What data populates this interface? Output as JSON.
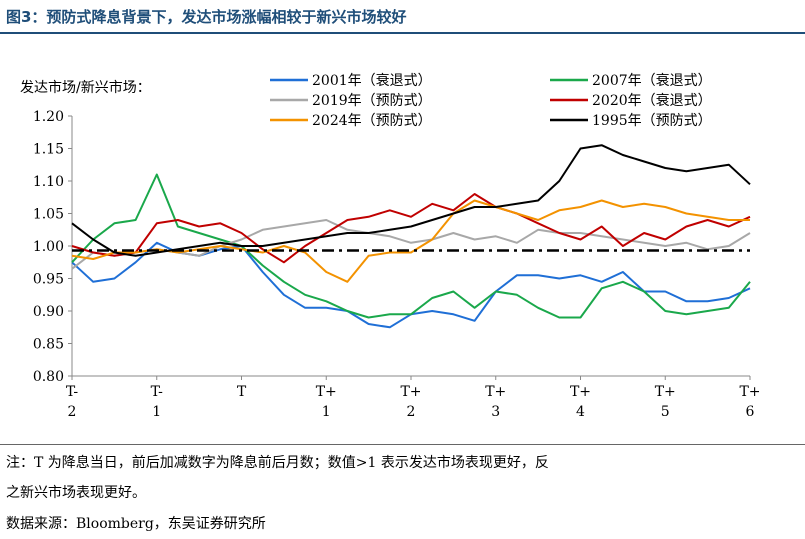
{
  "header": {
    "title": "图3：预防式降息背景下，发达市场涨幅相较于新兴市场较好"
  },
  "footer": {
    "note_line1": "注：T 为降息当日，前后加减数字为降息前后月数；数值>1 表示发达市场表现更好，反",
    "note_line2": "之新兴市场表现更好。",
    "source": "数据来源：Bloomberg，东吴证券研究所"
  },
  "chart_data": {
    "type": "line",
    "ylabel": "发达市场/新兴市场：",
    "ylim": [
      0.8,
      1.2
    ],
    "yticks": [
      "0.80",
      "0.85",
      "0.90",
      "0.95",
      "1.00",
      "1.05",
      "1.10",
      "1.15",
      "1.20"
    ],
    "xlim": [
      -2,
      6
    ],
    "xticks": [
      {
        "x": -2,
        "l1": "T-",
        "l2": "2"
      },
      {
        "x": -1,
        "l1": "T-",
        "l2": "1"
      },
      {
        "x": 0,
        "l1": "T",
        "l2": ""
      },
      {
        "x": 1,
        "l1": "T+",
        "l2": "1"
      },
      {
        "x": 2,
        "l1": "T+",
        "l2": "2"
      },
      {
        "x": 3,
        "l1": "T+",
        "l2": "3"
      },
      {
        "x": 4,
        "l1": "T+",
        "l2": "4"
      },
      {
        "x": 5,
        "l1": "T+",
        "l2": "5"
      },
      {
        "x": 6,
        "l1": "T+",
        "l2": "6"
      }
    ],
    "reference_line": {
      "y": 0.993,
      "style": "dash-dot",
      "color": "#000000"
    },
    "legend_position": "top",
    "series": [
      {
        "name": "2001年（衰退式）",
        "color": "#1f6fd6",
        "x": [
          -2,
          -1.75,
          -1.5,
          -1.25,
          -1.0,
          -0.75,
          -0.5,
          -0.25,
          0,
          0.25,
          0.5,
          0.75,
          1.0,
          1.25,
          1.5,
          1.75,
          2.0,
          2.25,
          2.5,
          2.75,
          3.0,
          3.25,
          3.5,
          3.75,
          4.0,
          4.25,
          4.5,
          4.75,
          5.0,
          5.25,
          5.5,
          5.75,
          6.0
        ],
        "y": [
          0.975,
          0.945,
          0.95,
          0.975,
          1.005,
          0.99,
          0.985,
          0.995,
          1.0,
          0.96,
          0.925,
          0.905,
          0.905,
          0.9,
          0.88,
          0.875,
          0.895,
          0.9,
          0.895,
          0.885,
          0.93,
          0.955,
          0.955,
          0.95,
          0.955,
          0.945,
          0.96,
          0.93,
          0.93,
          0.915,
          0.915,
          0.92,
          0.935
        ]
      },
      {
        "name": "2007年（衰退式）",
        "color": "#1aa84b",
        "x": [
          -2,
          -1.75,
          -1.5,
          -1.25,
          -1.0,
          -0.75,
          -0.5,
          -0.25,
          0,
          0.25,
          0.5,
          0.75,
          1.0,
          1.25,
          1.5,
          1.75,
          2.0,
          2.25,
          2.5,
          2.75,
          3.0,
          3.25,
          3.5,
          3.75,
          4.0,
          4.25,
          4.5,
          4.75,
          5.0,
          5.25,
          5.5,
          5.75,
          6.0
        ],
        "y": [
          0.975,
          1.01,
          1.035,
          1.04,
          1.11,
          1.03,
          1.02,
          1.01,
          1.0,
          0.97,
          0.945,
          0.925,
          0.915,
          0.9,
          0.89,
          0.895,
          0.895,
          0.92,
          0.93,
          0.905,
          0.93,
          0.925,
          0.905,
          0.89,
          0.89,
          0.935,
          0.945,
          0.93,
          0.9,
          0.895,
          0.9,
          0.905,
          0.945
        ]
      },
      {
        "name": "2019年（预防式）",
        "color": "#a8a8a8",
        "x": [
          -2,
          -1.75,
          -1.5,
          -1.25,
          -1.0,
          -0.75,
          -0.5,
          -0.25,
          0,
          0.25,
          0.5,
          0.75,
          1.0,
          1.25,
          1.5,
          1.75,
          2.0,
          2.25,
          2.5,
          2.75,
          3.0,
          3.25,
          3.5,
          3.75,
          4.0,
          4.25,
          4.5,
          4.75,
          5.0,
          5.25,
          5.5,
          5.75,
          6.0
        ],
        "y": [
          0.965,
          0.99,
          0.985,
          0.99,
          0.995,
          0.99,
          0.985,
          1.0,
          1.01,
          1.025,
          1.03,
          1.035,
          1.04,
          1.025,
          1.02,
          1.015,
          1.005,
          1.01,
          1.02,
          1.01,
          1.015,
          1.005,
          1.025,
          1.02,
          1.02,
          1.015,
          1.01,
          1.005,
          1.0,
          1.005,
          0.995,
          1.0,
          1.02
        ]
      },
      {
        "name": "2020年（衰退式）",
        "color": "#c00000",
        "x": [
          -2,
          -1.75,
          -1.5,
          -1.25,
          -1.0,
          -0.75,
          -0.5,
          -0.25,
          0,
          0.25,
          0.5,
          0.75,
          1.0,
          1.25,
          1.5,
          1.75,
          2.0,
          2.25,
          2.5,
          2.75,
          3.0,
          3.25,
          3.5,
          3.75,
          4.0,
          4.25,
          4.5,
          4.75,
          5.0,
          5.25,
          5.5,
          5.75,
          6.0
        ],
        "y": [
          1.0,
          0.99,
          0.985,
          0.99,
          1.035,
          1.04,
          1.03,
          1.035,
          1.02,
          0.995,
          0.975,
          1.0,
          1.02,
          1.04,
          1.045,
          1.055,
          1.045,
          1.065,
          1.055,
          1.08,
          1.06,
          1.05,
          1.035,
          1.02,
          1.01,
          1.03,
          1.0,
          1.02,
          1.01,
          1.03,
          1.04,
          1.03,
          1.045
        ]
      },
      {
        "name": "2024年（预防式）",
        "color": "#f39200",
        "x": [
          -2,
          -1.75,
          -1.5,
          -1.25,
          -1.0,
          -0.75,
          -0.5,
          -0.25,
          0,
          0.25,
          0.5,
          0.75,
          1.0,
          1.25,
          1.5,
          1.75,
          2.0,
          2.25,
          2.5,
          2.75,
          3.0,
          3.25,
          3.5,
          3.75,
          4.0,
          4.25,
          4.5,
          4.75,
          5.0,
          5.25,
          5.5,
          5.75,
          6.0
        ],
        "y": [
          0.985,
          0.98,
          0.99,
          0.99,
          0.995,
          0.99,
          0.995,
          1.0,
          0.995,
          0.99,
          1.0,
          0.99,
          0.96,
          0.945,
          0.985,
          0.99,
          0.99,
          1.01,
          1.05,
          1.07,
          1.06,
          1.05,
          1.04,
          1.055,
          1.06,
          1.07,
          1.06,
          1.065,
          1.06,
          1.05,
          1.045,
          1.04,
          1.04
        ]
      },
      {
        "name": "1995年（预防式）",
        "color": "#000000",
        "x": [
          -2,
          -1.75,
          -1.5,
          -1.25,
          -1.0,
          -0.75,
          -0.5,
          -0.25,
          0,
          0.25,
          0.5,
          0.75,
          1.0,
          1.25,
          1.5,
          1.75,
          2.0,
          2.25,
          2.5,
          2.75,
          3.0,
          3.25,
          3.5,
          3.75,
          4.0,
          4.25,
          4.5,
          4.75,
          5.0,
          5.25,
          5.5,
          5.75,
          6.0
        ],
        "y": [
          1.035,
          1.01,
          0.99,
          0.985,
          0.99,
          0.995,
          1.0,
          1.005,
          1.0,
          1.0,
          1.005,
          1.01,
          1.015,
          1.02,
          1.02,
          1.025,
          1.03,
          1.04,
          1.05,
          1.06,
          1.06,
          1.065,
          1.07,
          1.1,
          1.15,
          1.155,
          1.14,
          1.13,
          1.12,
          1.115,
          1.12,
          1.125,
          1.095
        ]
      }
    ]
  }
}
